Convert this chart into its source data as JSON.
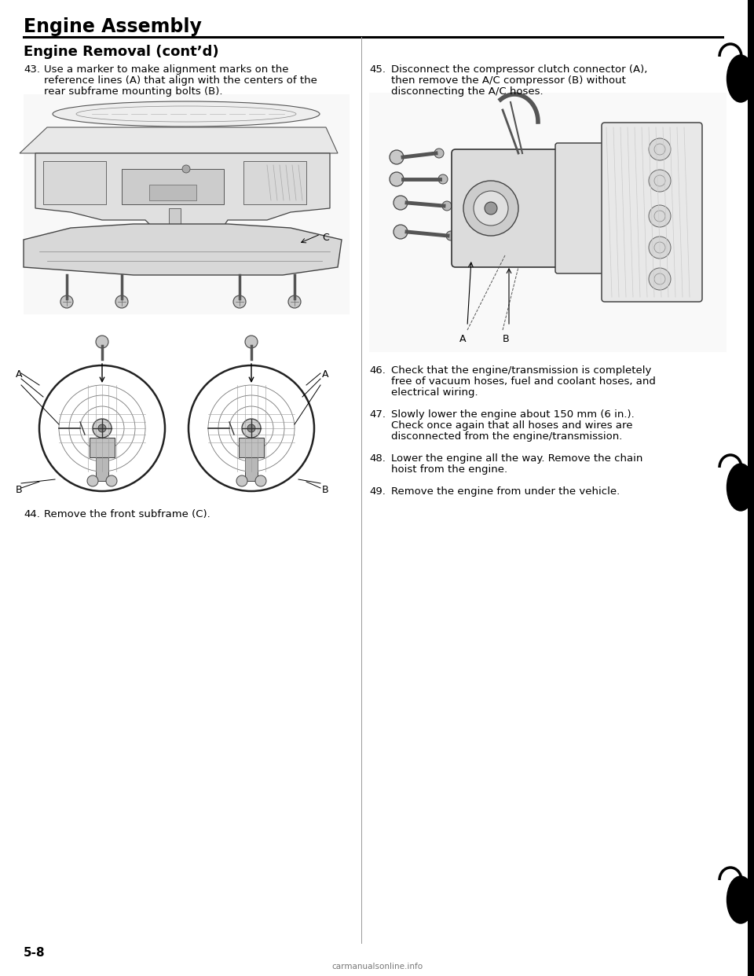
{
  "page_title": "Engine Assembly",
  "section_title": "Engine Removal (cont’d)",
  "bg_color": "#ffffff",
  "text_color": "#000000",
  "page_number": "5-8",
  "watermark": "carmanualsonline.info",
  "divider_color": "#000000",
  "item43_num": "43.",
  "item43_line1": "Use a marker to make alignment marks on the",
  "item43_line2": "reference lines (A) that align with the centers of the",
  "item43_line3": "rear subframe mounting bolts (B).",
  "item44_num": "44.",
  "item44_text": "Remove the front subframe (C).",
  "item45_num": "45.",
  "item45_line1": "Disconnect the compressor clutch connector (A),",
  "item45_line2": "then remove the A/C compressor (B) without",
  "item45_line3": "disconnecting the A/C hoses.",
  "item46_num": "46.",
  "item46_line1": "Check that the engine/transmission is completely",
  "item46_line2": "free of vacuum hoses, fuel and coolant hoses, and",
  "item46_line3": "electrical wiring.",
  "item47_num": "47.",
  "item47_line1": "Slowly lower the engine about 150 mm (6 in.).",
  "item47_line2": "Check once again that all hoses and wires are",
  "item47_line3": "disconnected from the engine/transmission.",
  "item48_num": "48.",
  "item48_line1": "Lower the engine all the way. Remove the chain",
  "item48_line2": "hoist from the engine.",
  "item49_num": "49.",
  "item49_text": "Remove the engine from under the vehicle.",
  "title_fontsize": 17,
  "section_fontsize": 13,
  "body_fontsize": 9.5,
  "page_num_fontsize": 11
}
